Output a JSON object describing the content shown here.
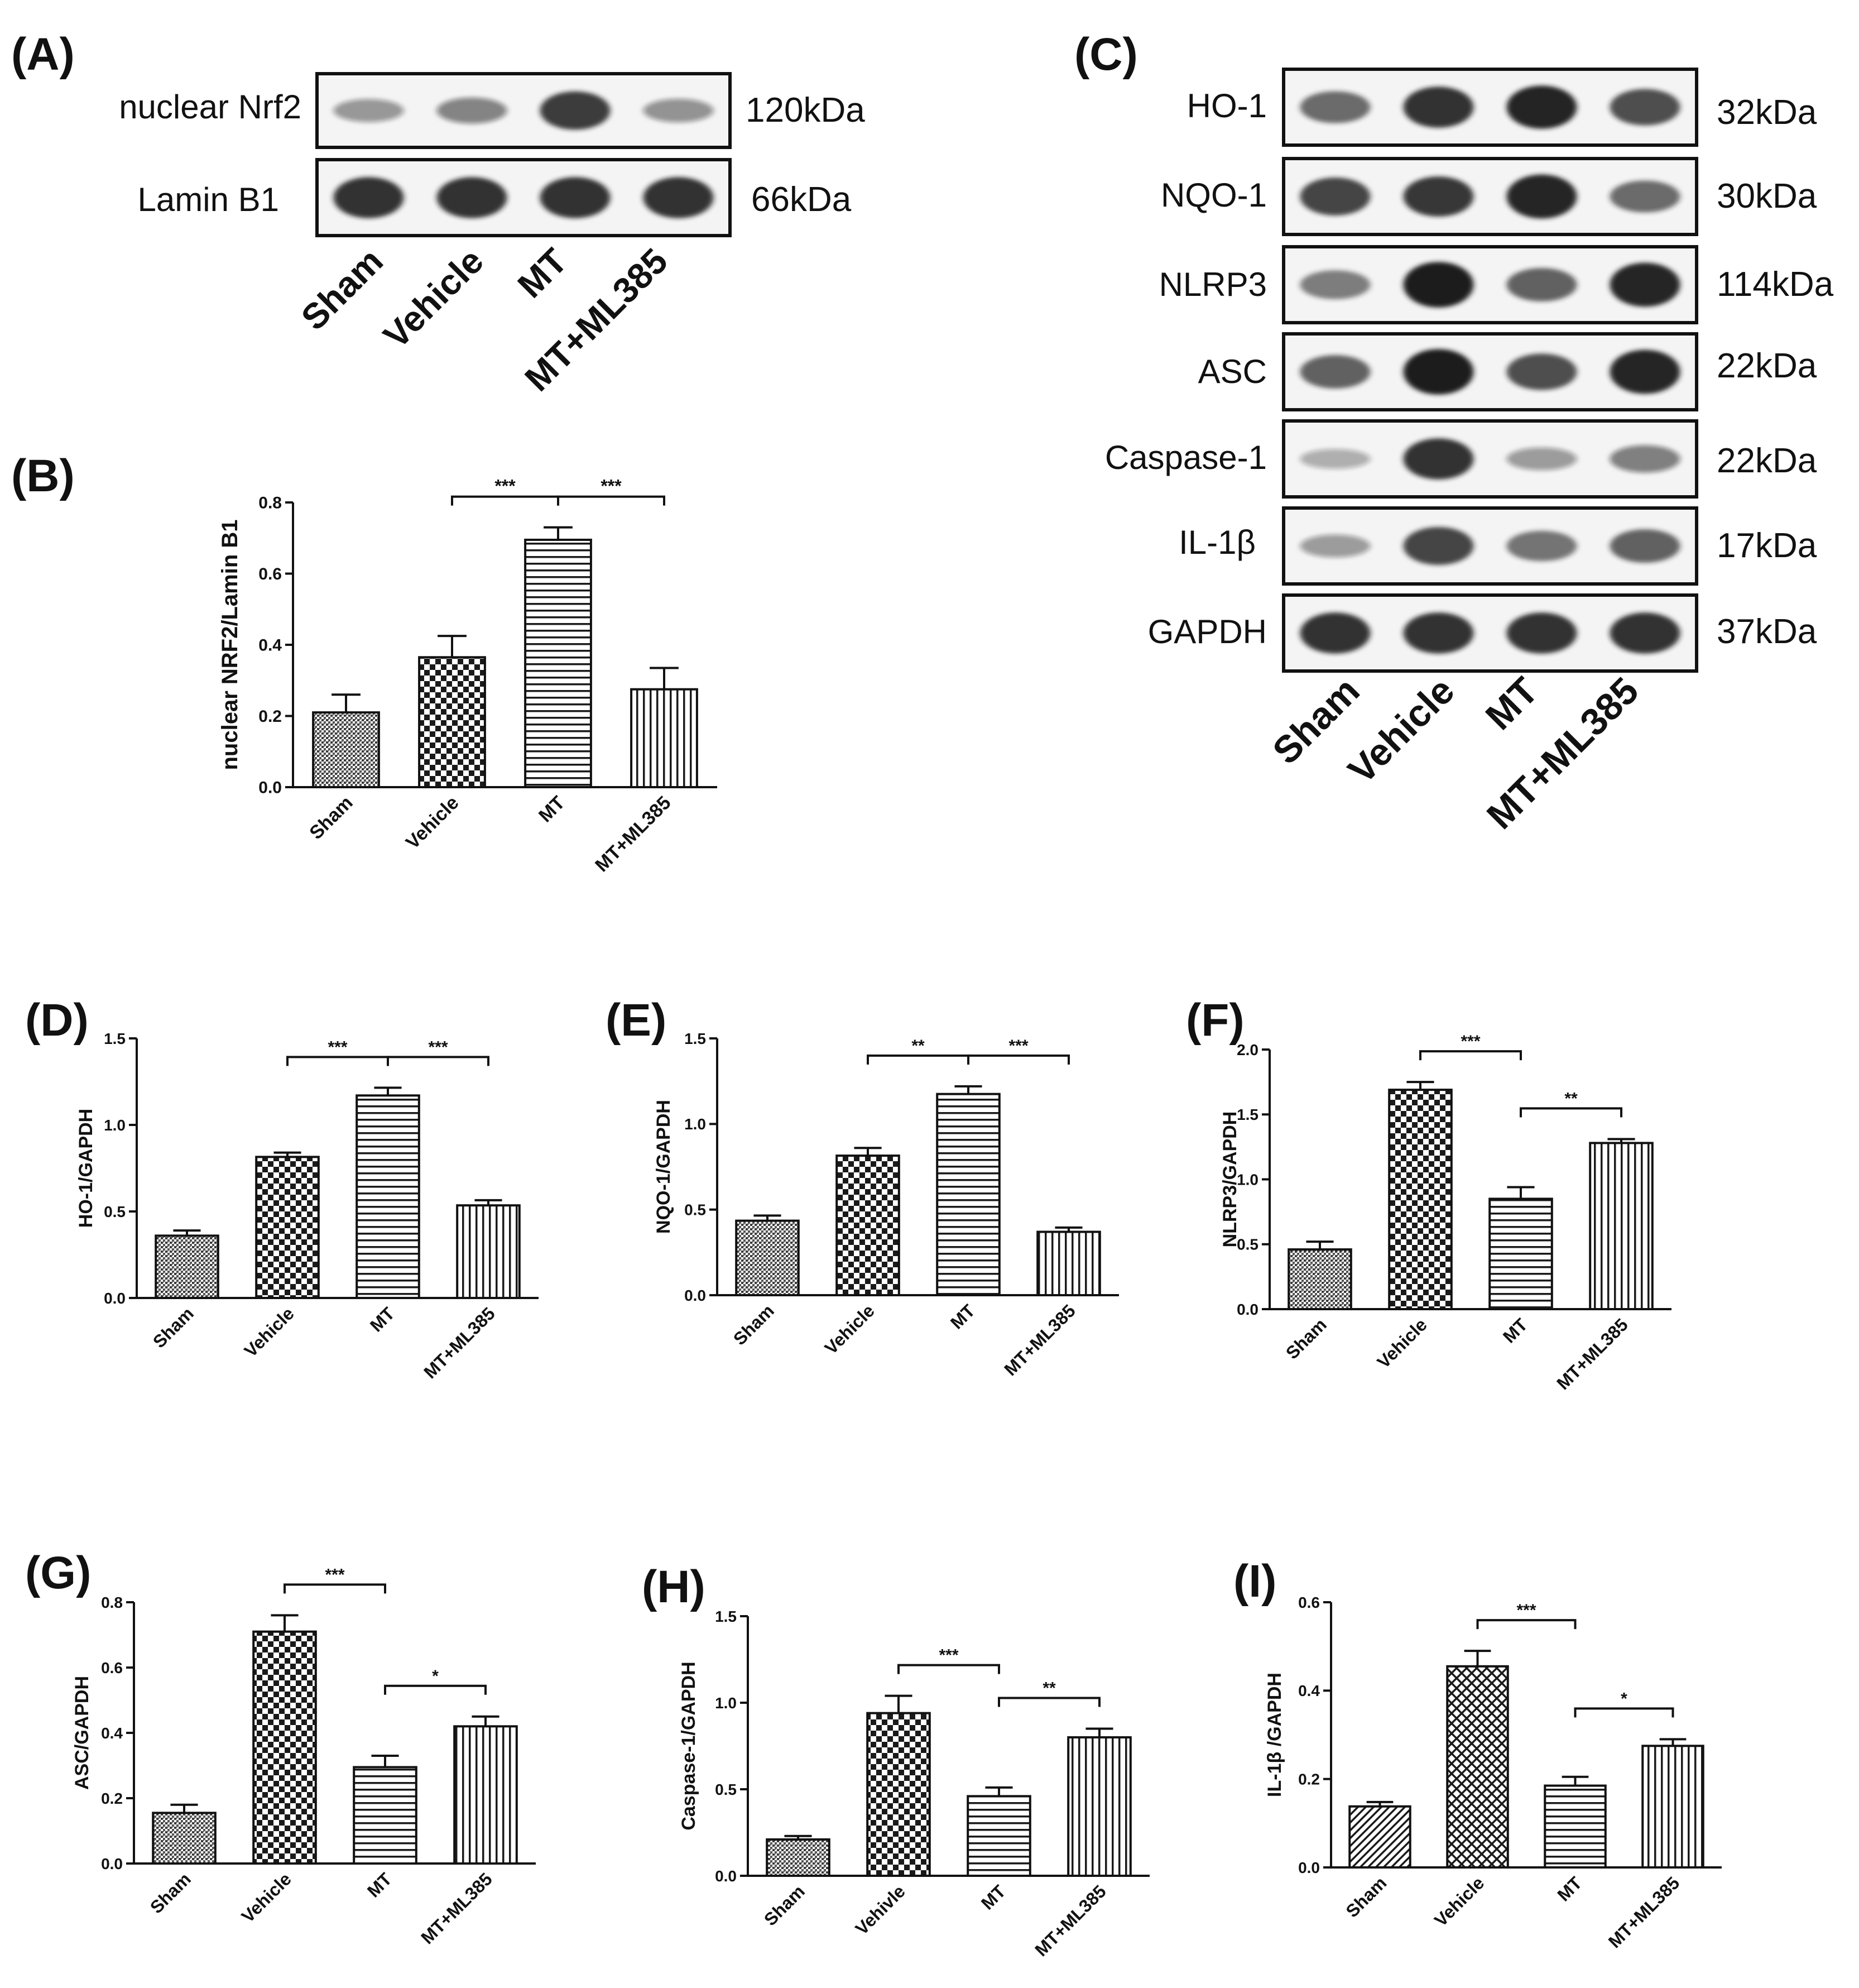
{
  "colors": {
    "ink": "#111111",
    "band": "#1a1a1a",
    "blot_bg": "#f4f4f4",
    "bar_fill": "#ffffff"
  },
  "blot_a": {
    "panel_label": "(A)",
    "rows": [
      {
        "protein": "nuclear Nrf2",
        "size": "120kDa",
        "intensities": [
          0.28,
          0.38,
          0.8,
          0.3
        ]
      },
      {
        "protein": "Lamin B1",
        "size": "66kDa",
        "intensities": [
          0.85,
          0.85,
          0.85,
          0.85
        ]
      }
    ],
    "lanes": [
      "Sham",
      "Vehicle",
      "MT",
      "MT+ML385"
    ]
  },
  "blot_c": {
    "panel_label": "(C)",
    "rows": [
      {
        "protein": "HO-1",
        "size": "32kDa",
        "intensities": [
          0.55,
          0.85,
          0.92,
          0.7
        ]
      },
      {
        "protein": "NQO-1",
        "size": "30kDa",
        "intensities": [
          0.75,
          0.82,
          0.95,
          0.55
        ]
      },
      {
        "protein": "NLRP3",
        "size": "114kDa",
        "intensities": [
          0.45,
          1.0,
          0.6,
          0.95
        ]
      },
      {
        "protein": "ASC",
        "size": "22kDa",
        "intensities": [
          0.6,
          1.0,
          0.7,
          0.95
        ]
      },
      {
        "protein": "Caspase-1",
        "size": "22kDa",
        "intensities": [
          0.15,
          0.85,
          0.25,
          0.4
        ]
      },
      {
        "protein": "IL-1β",
        "size": "17kDa",
        "intensities": [
          0.25,
          0.75,
          0.5,
          0.6
        ]
      },
      {
        "protein": "GAPDH",
        "size": "37kDa",
        "intensities": [
          0.85,
          0.85,
          0.85,
          0.85
        ]
      }
    ],
    "lanes": [
      "Sham",
      "Vehicle",
      "MT",
      "MT+ML385"
    ]
  },
  "chart_data": [
    {
      "panel_label": "(B)",
      "type": "bar",
      "categories": [
        "Sham",
        "Vehicle",
        "MT",
        "MT+ML385"
      ],
      "values": [
        0.21,
        0.365,
        0.695,
        0.275
      ],
      "errors": [
        0.05,
        0.06,
        0.035,
        0.06
      ],
      "patterns": [
        "grain",
        "checker",
        "hlines",
        "vlines"
      ],
      "ylabel": "nuclear NRF2/Lamin B1",
      "ylim": [
        0,
        0.8
      ],
      "yticks": [
        "0.0",
        "0.2",
        "0.4",
        "0.6",
        "0.8"
      ],
      "significance": [
        {
          "from": 1,
          "to": 2,
          "label": "***"
        },
        {
          "from": 2,
          "to": 3,
          "label": "***"
        }
      ]
    },
    {
      "panel_label": "(D)",
      "type": "bar",
      "categories": [
        "Sham",
        "Vehicle",
        "MT",
        "MT+ML385"
      ],
      "values": [
        0.36,
        0.815,
        1.17,
        0.535
      ],
      "errors": [
        0.03,
        0.025,
        0.045,
        0.03
      ],
      "patterns": [
        "grain",
        "checker",
        "hlines",
        "vlines"
      ],
      "ylabel": "HO-1/GAPDH",
      "ylim": [
        0,
        1.5
      ],
      "yticks": [
        "0.0",
        "0.5",
        "1.0",
        "1.5"
      ],
      "significance": [
        {
          "from": 1,
          "to": 2,
          "label": "***"
        },
        {
          "from": 2,
          "to": 3,
          "label": "***"
        }
      ]
    },
    {
      "panel_label": "(E)",
      "type": "bar",
      "categories": [
        "Sham",
        "Vehicle",
        "MT",
        "MT+ML385"
      ],
      "values": [
        0.435,
        0.815,
        1.175,
        0.37
      ],
      "errors": [
        0.03,
        0.045,
        0.045,
        0.025
      ],
      "patterns": [
        "grain",
        "checker",
        "hlines",
        "vlines"
      ],
      "ylabel": "NQO-1/GAPDH",
      "ylim": [
        0,
        1.5
      ],
      "yticks": [
        "0.0",
        "0.5",
        "1.0",
        "1.5"
      ],
      "significance": [
        {
          "from": 1,
          "to": 2,
          "label": "**"
        },
        {
          "from": 2,
          "to": 3,
          "label": "***"
        }
      ]
    },
    {
      "panel_label": "(F)",
      "type": "bar",
      "categories": [
        "Sham",
        "Vehicle",
        "MT",
        "MT+ML385"
      ],
      "values": [
        0.46,
        1.69,
        0.85,
        1.28
      ],
      "errors": [
        0.06,
        0.06,
        0.09,
        0.03
      ],
      "patterns": [
        "grain",
        "checker",
        "hlines",
        "vlines"
      ],
      "ylabel": "NLRP3/GAPDH",
      "ylim": [
        0,
        2.0
      ],
      "yticks": [
        "0.0",
        "0.5",
        "1.0",
        "1.5",
        "2.0"
      ],
      "significance": [
        {
          "from": 1,
          "to": 2,
          "label": "***"
        },
        {
          "from": 2,
          "to": 3,
          "label": "**"
        }
      ]
    },
    {
      "panel_label": "(G)",
      "type": "bar",
      "categories": [
        "Sham",
        "Vehicle",
        "MT",
        "MT+ML385"
      ],
      "values": [
        0.155,
        0.71,
        0.295,
        0.42
      ],
      "errors": [
        0.025,
        0.05,
        0.035,
        0.03
      ],
      "patterns": [
        "grain",
        "checker",
        "hlines",
        "vlines"
      ],
      "ylabel": "ASC/GAPDH",
      "ylim": [
        0,
        0.8
      ],
      "yticks": [
        "0.0",
        "0.2",
        "0.4",
        "0.6",
        "0.8"
      ],
      "significance": [
        {
          "from": 1,
          "to": 2,
          "label": "***"
        },
        {
          "from": 2,
          "to": 3,
          "label": "*"
        }
      ]
    },
    {
      "panel_label": "(H)",
      "type": "bar",
      "categories": [
        "Sham",
        "Vehivle",
        "MT",
        "MT+ML385"
      ],
      "values": [
        0.21,
        0.94,
        0.46,
        0.8
      ],
      "errors": [
        0.02,
        0.1,
        0.05,
        0.05
      ],
      "patterns": [
        "grain",
        "checker",
        "hlines",
        "vlines"
      ],
      "ylabel": "Caspase-1/GAPDH",
      "ylim": [
        0,
        1.5
      ],
      "yticks": [
        "0.0",
        "0.5",
        "1.0",
        "1.5"
      ],
      "significance": [
        {
          "from": 1,
          "to": 2,
          "label": "***"
        },
        {
          "from": 2,
          "to": 3,
          "label": "**"
        }
      ]
    },
    {
      "panel_label": "(I)",
      "type": "bar",
      "categories": [
        "Sham",
        "Vehicle",
        "MT",
        "MT+ML385"
      ],
      "values": [
        0.138,
        0.455,
        0.185,
        0.275
      ],
      "errors": [
        0.01,
        0.035,
        0.02,
        0.015
      ],
      "patterns": [
        "diag",
        "cross",
        "hlines",
        "vlines"
      ],
      "ylabel": "IL-1β /GAPDH",
      "ylim": [
        0,
        0.6
      ],
      "yticks": [
        "0.0",
        "0.2",
        "0.4",
        "0.6"
      ],
      "significance": [
        {
          "from": 1,
          "to": 2,
          "label": "***"
        },
        {
          "from": 2,
          "to": 3,
          "label": "*"
        }
      ]
    }
  ]
}
